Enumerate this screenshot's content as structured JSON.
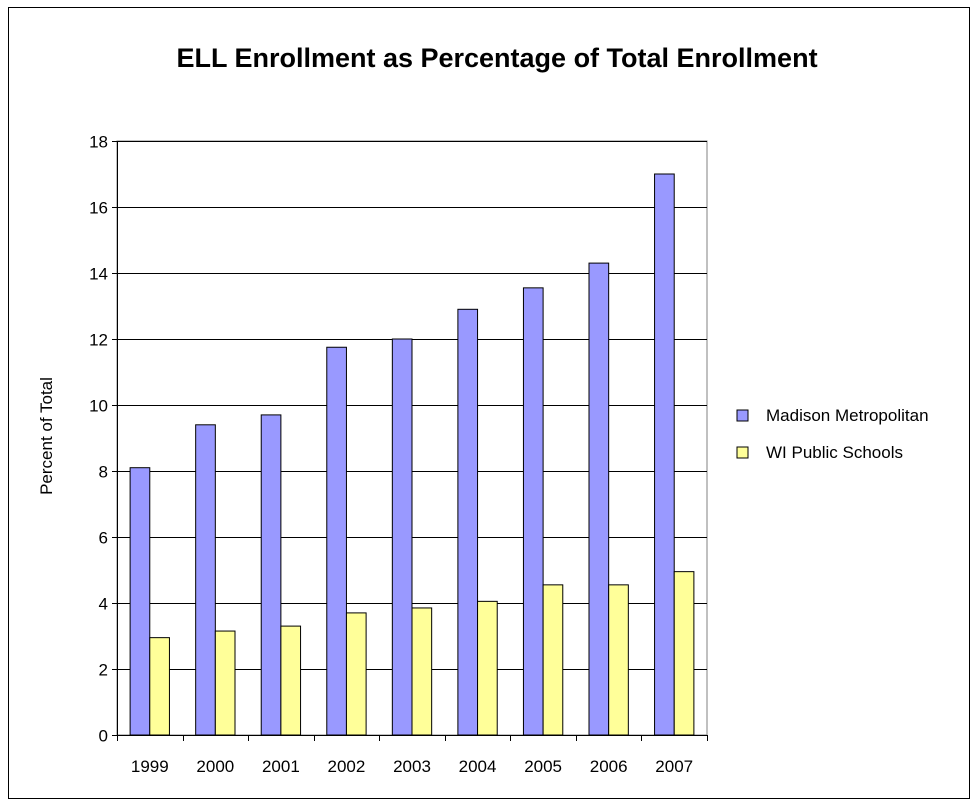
{
  "chart_data": {
    "type": "bar",
    "title": "ELL Enrollment as Percentage of Total Enrollment",
    "xlabel": "",
    "ylabel": "Percent of Total",
    "categories": [
      "1999",
      "2000",
      "2001",
      "2002",
      "2003",
      "2004",
      "2005",
      "2006",
      "2007"
    ],
    "series": [
      {
        "name": "Madison Metropolitan",
        "color": "#9999ff",
        "values": [
          8.1,
          9.4,
          9.7,
          11.75,
          12.0,
          12.9,
          13.55,
          14.3,
          17.0
        ]
      },
      {
        "name": "WI Public Schools",
        "color": "#ffff99",
        "values": [
          2.95,
          3.15,
          3.3,
          3.7,
          3.85,
          4.05,
          4.55,
          4.55,
          4.95
        ]
      }
    ],
    "ylim": [
      0,
      18
    ],
    "yticks": [
      0,
      2,
      4,
      6,
      8,
      10,
      12,
      14,
      16,
      18
    ],
    "grid": true,
    "legend_position": "right",
    "plot_background": "#ffffff",
    "gridline_color": "#000000"
  }
}
